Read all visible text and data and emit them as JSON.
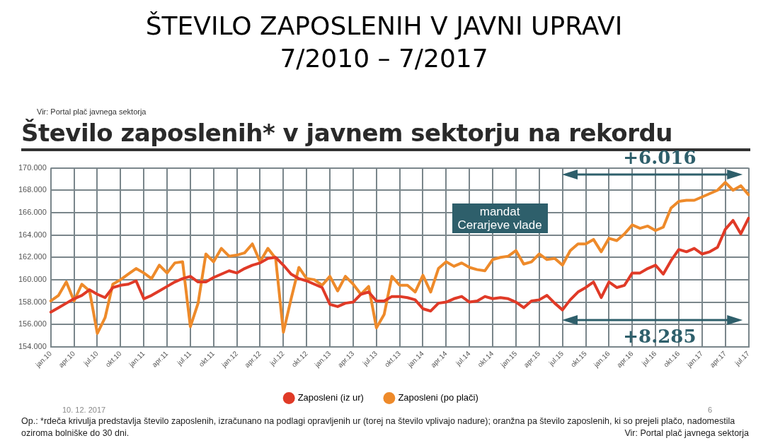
{
  "chart_data": {
    "type": "line",
    "title": "ŠTEVILO ZAPOSLENIH V JAVNI UPRAVI\n7/2010 – 7/2017",
    "subtitle": "Število zaposlenih* v javnem sektorju na rekordu",
    "categories": [
      "jan.10",
      null,
      null,
      "apr.10",
      null,
      null,
      "jul.10",
      null,
      null,
      "okt.10",
      null,
      null,
      "jan.11",
      null,
      null,
      "apr.11",
      null,
      null,
      "jul.11",
      null,
      null,
      "okt.11",
      null,
      null,
      "jan.12",
      null,
      null,
      "apr.12",
      null,
      null,
      "jul.12",
      null,
      null,
      "okt.12",
      null,
      null,
      "jan.13",
      null,
      null,
      "apr.13",
      null,
      null,
      "jul.13",
      null,
      null,
      "okt.13",
      null,
      null,
      "jan.14",
      null,
      null,
      "apr.14",
      null,
      null,
      "jul.14",
      null,
      null,
      "okt.14",
      null,
      null,
      "jan.15",
      null,
      null,
      "apr.15",
      null,
      null,
      "jul.15",
      null,
      null,
      "okt.15",
      null,
      null,
      "jan.16",
      null,
      null,
      "apr.16",
      null,
      null,
      "jul.16",
      null,
      null,
      "okt.16",
      null,
      null,
      "jan.17",
      null,
      null,
      "apr.17",
      null,
      null,
      "jul.17"
    ],
    "series": [
      {
        "name": "Zaposleni (iz ur)",
        "color": "#e03a27",
        "values": [
          157100,
          157500,
          157900,
          158300,
          158600,
          159100,
          158700,
          158400,
          159300,
          159500,
          159600,
          159900,
          158300,
          158600,
          159000,
          159400,
          159800,
          160100,
          160300,
          159800,
          159800,
          160200,
          160500,
          160800,
          160600,
          161000,
          161300,
          161500,
          161900,
          162000,
          161300,
          160500,
          160100,
          159900,
          159600,
          159300,
          157800,
          157600,
          157900,
          158000,
          158700,
          158900,
          158100,
          158100,
          158500,
          158500,
          158400,
          158200,
          157400,
          157200,
          157900,
          158000,
          158300,
          158500,
          158000,
          158100,
          158500,
          158300,
          158400,
          158300,
          158000,
          157500,
          158100,
          158200,
          158600,
          157900,
          157300,
          158200,
          158900,
          159300,
          159800,
          158400,
          159800,
          159300,
          159500,
          160600,
          160600,
          161000,
          161300,
          160500,
          161700,
          162700,
          162500,
          162800,
          162300,
          162500,
          162900,
          164500,
          165300,
          164100,
          165500
        ]
      },
      {
        "name": "Zaposleni (po plači)",
        "color": "#ee8a2a",
        "values": [
          158100,
          158600,
          159800,
          158100,
          159600,
          159000,
          155200,
          156600,
          159600,
          160000,
          160500,
          161000,
          160600,
          160100,
          161300,
          160600,
          161500,
          161600,
          155800,
          157900,
          162300,
          161600,
          162800,
          162100,
          162200,
          162400,
          163200,
          161600,
          162800,
          161900,
          155300,
          158300,
          161100,
          160100,
          160000,
          159500,
          160300,
          159000,
          160300,
          159600,
          158700,
          159400,
          155700,
          156900,
          160300,
          159500,
          159500,
          158900,
          160400,
          158900,
          161000,
          161600,
          161200,
          161500,
          161100,
          160900,
          160800,
          161800,
          162000,
          162100,
          162600,
          161400,
          161600,
          162300,
          161800,
          161900,
          161300,
          162600,
          163200,
          163200,
          163600,
          162500,
          163700,
          163500,
          164100,
          164900,
          164600,
          164800,
          164400,
          164700,
          166400,
          167000,
          167100,
          167100,
          167400,
          167700,
          168000,
          168700,
          168000,
          168400,
          167600
        ]
      }
    ],
    "ylim": [
      154000,
      170000
    ],
    "yticks": [
      {
        "value": 154000,
        "label": "154.000"
      },
      {
        "value": 156000,
        "label": "156.000"
      },
      {
        "value": 158000,
        "label": "158.000"
      },
      {
        "value": 160000,
        "label": "160.000"
      },
      {
        "value": 162000,
        "label": "162.000"
      },
      {
        "value": 164000,
        "label": "164.000"
      },
      {
        "value": 166000,
        "label": "166.000"
      },
      {
        "value": 168000,
        "label": "168.000"
      },
      {
        "value": 170000,
        "label": "170.000"
      }
    ],
    "grid": true,
    "legend": "bottom",
    "marker": "none",
    "line_style": "solid",
    "annotations": [
      "Vir: Portal plač javnega sektorja",
      "mandat Cerarjeve vlade",
      "+6.016",
      "+8.285",
      "Op.: *rdeča krivulja predstavlja število zaposlenih, izračunano na podlagi opravljenih ur (torej na število vplivajo nadure); oranžna pa število zaposlenih, ki so prejeli plačo, nadomestila oziroma bolniške do 30 dni.",
      "Vir: Portal plač javnega sektorja",
      "10. 12. 2017",
      "6"
    ]
  }
}
